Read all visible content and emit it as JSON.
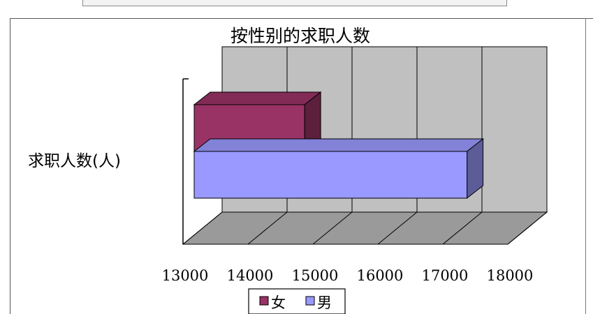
{
  "chart_data": {
    "type": "bar",
    "orientation": "horizontal",
    "style": "3d-clustered",
    "title": "按性别的求职人数",
    "ylabel": "求职人数(人)",
    "xlabel": "",
    "categories": [
      ""
    ],
    "xlim": [
      13000,
      18000
    ],
    "x_ticks": [
      "13000",
      "14000",
      "15000",
      "16000",
      "17000",
      "18000"
    ],
    "series": [
      {
        "name": "女",
        "values": [
          14700
        ],
        "color": "#993366"
      },
      {
        "name": "男",
        "values": [
          17200
        ],
        "color": "#9999FF"
      }
    ],
    "grid": true,
    "legend_position": "bottom"
  }
}
